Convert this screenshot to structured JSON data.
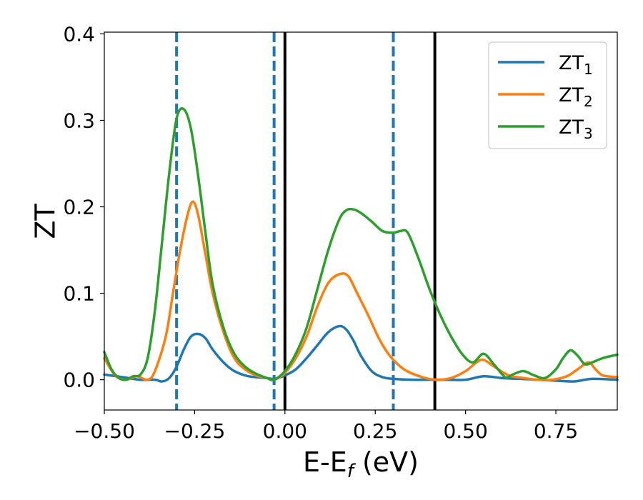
{
  "chart_data": {
    "type": "line",
    "xlabel": "E-E_f (eV)",
    "xlabel_parts": {
      "base": "E-E",
      "sub": "f",
      "tail": " (eV)"
    },
    "ylabel": "ZT",
    "xlim": [
      -0.5,
      0.92
    ],
    "ylim": [
      -0.035,
      0.402
    ],
    "xticks": [
      -0.5,
      -0.25,
      0.0,
      0.25,
      0.5,
      0.75
    ],
    "xtick_labels": [
      "−0.50",
      "−0.25",
      "0.00",
      "0.25",
      "0.50",
      "0.75"
    ],
    "yticks": [
      0.0,
      0.1,
      0.2,
      0.3,
      0.4
    ],
    "ytick_labels": [
      "0.0",
      "0.1",
      "0.2",
      "0.3",
      "0.4"
    ],
    "grid": false,
    "legend_position": "top-right",
    "series": [
      {
        "name": "ZT1",
        "label_base": "ZT",
        "label_sub": "1",
        "color": "#1f77b4",
        "x": [
          -0.5,
          -0.45,
          -0.4,
          -0.36,
          -0.34,
          -0.32,
          -0.3,
          -0.28,
          -0.26,
          -0.24,
          -0.22,
          -0.2,
          -0.17,
          -0.14,
          -0.1,
          -0.05,
          -0.03,
          0.0,
          0.03,
          0.06,
          0.09,
          0.12,
          0.15,
          0.17,
          0.19,
          0.21,
          0.24,
          0.27,
          0.3,
          0.35,
          0.4,
          0.45,
          0.5,
          0.55,
          0.6,
          0.65,
          0.7,
          0.75,
          0.8,
          0.85,
          0.92
        ],
        "y": [
          0.006,
          0.003,
          0.0,
          0.0,
          -0.002,
          0.002,
          0.015,
          0.035,
          0.05,
          0.053,
          0.048,
          0.035,
          0.02,
          0.01,
          0.004,
          0.002,
          0.001,
          0.005,
          0.012,
          0.025,
          0.04,
          0.055,
          0.062,
          0.058,
          0.045,
          0.028,
          0.01,
          0.003,
          0.001,
          0.0,
          0.0,
          0.0,
          0.0,
          0.004,
          0.002,
          0.001,
          0.0,
          -0.001,
          -0.002,
          0.001,
          0.0
        ]
      },
      {
        "name": "ZT2",
        "label_base": "ZT",
        "label_sub": "2",
        "color": "#ff7f0e",
        "x": [
          -0.5,
          -0.47,
          -0.44,
          -0.41,
          -0.38,
          -0.36,
          -0.33,
          -0.31,
          -0.29,
          -0.27,
          -0.255,
          -0.24,
          -0.22,
          -0.2,
          -0.17,
          -0.14,
          -0.11,
          -0.08,
          -0.05,
          -0.03,
          0.0,
          0.03,
          0.06,
          0.09,
          0.12,
          0.15,
          0.175,
          0.2,
          0.23,
          0.26,
          0.29,
          0.33,
          0.38,
          0.42,
          0.46,
          0.5,
          0.53,
          0.55,
          0.58,
          0.62,
          0.66,
          0.7,
          0.74,
          0.78,
          0.81,
          0.84,
          0.86,
          0.88,
          0.92
        ],
        "y": [
          0.025,
          0.005,
          0.0,
          0.004,
          0.0,
          0.01,
          0.05,
          0.1,
          0.15,
          0.19,
          0.206,
          0.19,
          0.145,
          0.1,
          0.055,
          0.025,
          0.012,
          0.005,
          0.002,
          0.0,
          0.008,
          0.025,
          0.05,
          0.085,
          0.112,
          0.122,
          0.12,
          0.1,
          0.075,
          0.048,
          0.028,
          0.012,
          0.003,
          0.0,
          0.002,
          0.01,
          0.02,
          0.023,
          0.015,
          0.005,
          0.002,
          0.0,
          0.0,
          0.004,
          0.012,
          0.02,
          0.012,
          0.005,
          0.003
        ]
      },
      {
        "name": "ZT3",
        "label_base": "ZT",
        "label_sub": "3",
        "color": "#2ca02c",
        "x": [
          -0.5,
          -0.48,
          -0.46,
          -0.44,
          -0.42,
          -0.4,
          -0.38,
          -0.36,
          -0.34,
          -0.32,
          -0.3,
          -0.28,
          -0.26,
          -0.24,
          -0.22,
          -0.2,
          -0.17,
          -0.14,
          -0.11,
          -0.08,
          -0.05,
          -0.03,
          0.0,
          0.03,
          0.06,
          0.09,
          0.12,
          0.15,
          0.17,
          0.19,
          0.21,
          0.24,
          0.27,
          0.3,
          0.32,
          0.34,
          0.37,
          0.4,
          0.43,
          0.46,
          0.49,
          0.52,
          0.55,
          0.58,
          0.61,
          0.63,
          0.66,
          0.69,
          0.72,
          0.75,
          0.77,
          0.79,
          0.81,
          0.83,
          0.85,
          0.88,
          0.92
        ],
        "y": [
          0.032,
          0.012,
          0.002,
          0.0,
          0.004,
          0.006,
          0.025,
          0.08,
          0.16,
          0.24,
          0.302,
          0.313,
          0.29,
          0.235,
          0.17,
          0.11,
          0.06,
          0.03,
          0.015,
          0.007,
          0.002,
          0.0,
          0.01,
          0.03,
          0.06,
          0.105,
          0.15,
          0.185,
          0.196,
          0.197,
          0.193,
          0.183,
          0.172,
          0.17,
          0.172,
          0.17,
          0.14,
          0.105,
          0.075,
          0.05,
          0.03,
          0.02,
          0.03,
          0.017,
          0.003,
          0.006,
          0.01,
          0.005,
          0.002,
          0.012,
          0.025,
          0.034,
          0.028,
          0.018,
          0.02,
          0.025,
          0.029
        ]
      }
    ],
    "vertical_lines": [
      {
        "x": -0.3,
        "style": "dashed",
        "color": "#1f77b4"
      },
      {
        "x": -0.03,
        "style": "dashed",
        "color": "#1f77b4"
      },
      {
        "x": 0.0,
        "style": "solid",
        "color": "#000000"
      },
      {
        "x": 0.3,
        "style": "dashed",
        "color": "#1f77b4"
      },
      {
        "x": 0.415,
        "style": "solid",
        "color": "#000000"
      }
    ]
  }
}
